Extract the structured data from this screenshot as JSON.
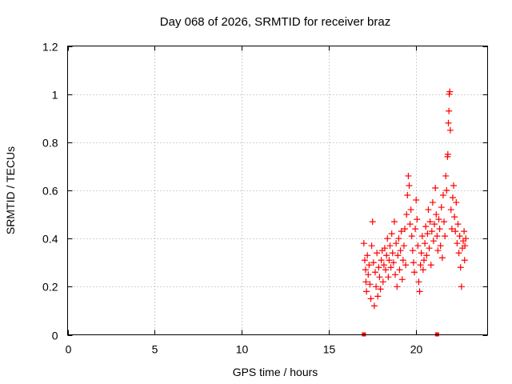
{
  "chart_data": {
    "type": "scatter",
    "title": "Day 068 of 2026, SRMTID for receiver braz",
    "xlabel": "GPS time / hours",
    "ylabel": "SRMTID / TECUs",
    "xlim": [
      0,
      24.1
    ],
    "ylim": [
      0,
      1.2
    ],
    "xticks": [
      0,
      5,
      10,
      15,
      20
    ],
    "xtick_labels": [
      "0",
      "5",
      "10",
      "15",
      "20"
    ],
    "yticks": [
      0,
      0.2,
      0.4,
      0.6,
      0.8,
      1.0,
      1.2
    ],
    "ytick_labels": [
      "0",
      "0.2",
      "0.4",
      "0.6",
      "0.8",
      "1",
      "1.2"
    ],
    "grid": true,
    "marker": "plus",
    "series_color": "#ff0000",
    "series": [
      {
        "name": "SRMTID",
        "points": [
          [
            17.0,
            0.38
          ],
          [
            17.05,
            0.31
          ],
          [
            17.1,
            0.27
          ],
          [
            17.12,
            0.22
          ],
          [
            17.15,
            0.18
          ],
          [
            17.2,
            0.33
          ],
          [
            17.25,
            0.25
          ],
          [
            17.3,
            0.29
          ],
          [
            17.35,
            0.21
          ],
          [
            17.4,
            0.15
          ],
          [
            17.45,
            0.37
          ],
          [
            17.5,
            0.47
          ],
          [
            17.55,
            0.3
          ],
          [
            17.6,
            0.12
          ],
          [
            17.65,
            0.26
          ],
          [
            17.7,
            0.2
          ],
          [
            17.75,
            0.34
          ],
          [
            17.8,
            0.16
          ],
          [
            17.85,
            0.28
          ],
          [
            17.9,
            0.24
          ],
          [
            17.95,
            0.19
          ],
          [
            18.0,
            0.31
          ],
          [
            18.05,
            0.35
          ],
          [
            18.1,
            0.22
          ],
          [
            18.15,
            0.29
          ],
          [
            18.2,
            0.36
          ],
          [
            18.25,
            0.27
          ],
          [
            18.3,
            0.33
          ],
          [
            18.35,
            0.4
          ],
          [
            18.4,
            0.24
          ],
          [
            18.45,
            0.31
          ],
          [
            18.5,
            0.37
          ],
          [
            18.55,
            0.28
          ],
          [
            18.6,
            0.42
          ],
          [
            18.65,
            0.34
          ],
          [
            18.7,
            0.3
          ],
          [
            18.75,
            0.47
          ],
          [
            18.8,
            0.25
          ],
          [
            18.85,
            0.38
          ],
          [
            18.9,
            0.2
          ],
          [
            18.95,
            0.33
          ],
          [
            19.0,
            0.4
          ],
          [
            19.05,
            0.27
          ],
          [
            19.1,
            0.35
          ],
          [
            19.15,
            0.43
          ],
          [
            19.2,
            0.23
          ],
          [
            19.25,
            0.31
          ],
          [
            19.3,
            0.37
          ],
          [
            19.35,
            0.44
          ],
          [
            19.4,
            0.29
          ],
          [
            19.45,
            0.5
          ],
          [
            19.5,
            0.58
          ],
          [
            19.55,
            0.66
          ],
          [
            19.6,
            0.62
          ],
          [
            19.65,
            0.46
          ],
          [
            19.7,
            0.52
          ],
          [
            19.75,
            0.41
          ],
          [
            19.8,
            0.35
          ],
          [
            19.85,
            0.3
          ],
          [
            19.9,
            0.26
          ],
          [
            19.95,
            0.44
          ],
          [
            20.0,
            0.56
          ],
          [
            20.05,
            0.48
          ],
          [
            20.1,
            0.37
          ],
          [
            20.15,
            0.22
          ],
          [
            20.2,
            0.18
          ],
          [
            20.25,
            0.29
          ],
          [
            20.3,
            0.34
          ],
          [
            20.35,
            0.41
          ],
          [
            20.4,
            0.27
          ],
          [
            20.45,
            0.31
          ],
          [
            20.5,
            0.38
          ],
          [
            20.55,
            0.45
          ],
          [
            20.6,
            0.33
          ],
          [
            20.65,
            0.42
          ],
          [
            20.7,
            0.52
          ],
          [
            20.75,
            0.36
          ],
          [
            20.8,
            0.47
          ],
          [
            20.85,
            0.29
          ],
          [
            20.9,
            0.43
          ],
          [
            20.95,
            0.55
          ],
          [
            21.0,
            0.39
          ],
          [
            21.05,
            0.46
          ],
          [
            21.1,
            0.61
          ],
          [
            21.15,
            0.5
          ],
          [
            21.2,
            0.41
          ],
          [
            21.25,
            0.35
          ],
          [
            21.3,
            0.48
          ],
          [
            21.35,
            0.44
          ],
          [
            21.4,
            0.37
          ],
          [
            21.45,
            0.53
          ],
          [
            21.5,
            0.32
          ],
          [
            21.55,
            0.58
          ],
          [
            21.6,
            0.47
          ],
          [
            21.65,
            0.41
          ],
          [
            21.7,
            0.66
          ],
          [
            21.75,
            0.6
          ],
          [
            21.8,
            0.74
          ],
          [
            21.82,
            0.75
          ],
          [
            21.85,
            0.88
          ],
          [
            21.88,
            0.93
          ],
          [
            21.9,
            1.0
          ],
          [
            21.93,
            1.01
          ],
          [
            21.96,
            0.85
          ],
          [
            22.0,
            0.52
          ],
          [
            22.05,
            0.44
          ],
          [
            22.1,
            0.57
          ],
          [
            22.15,
            0.62
          ],
          [
            22.2,
            0.49
          ],
          [
            22.25,
            0.43
          ],
          [
            22.3,
            0.55
          ],
          [
            22.35,
            0.38
          ],
          [
            22.4,
            0.46
          ],
          [
            22.45,
            0.34
          ],
          [
            22.5,
            0.41
          ],
          [
            22.55,
            0.28
          ],
          [
            22.6,
            0.2
          ],
          [
            22.65,
            0.36
          ],
          [
            22.7,
            0.39
          ],
          [
            22.75,
            0.43
          ],
          [
            22.78,
            0.31
          ],
          [
            22.8,
            0.37
          ],
          [
            22.85,
            0.4
          ]
        ]
      }
    ],
    "zero_markers": [
      17.0,
      21.2
    ]
  }
}
